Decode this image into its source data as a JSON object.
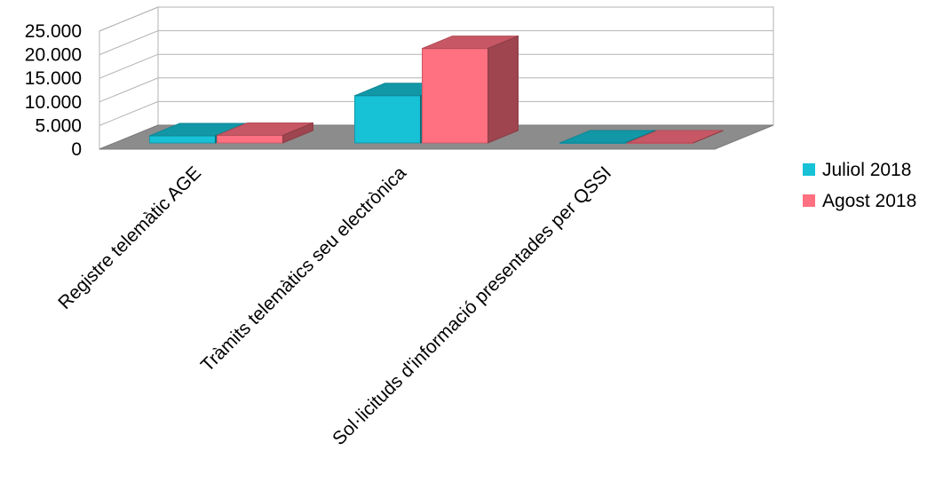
{
  "chart_data": {
    "type": "bar",
    "categories": [
      "Registre telemàtic AGE",
      "Tràmits telemàtics seu electrònica",
      "Sol·licituds d'informació presentades per QSSI"
    ],
    "series": [
      {
        "name": "Juliol 2018",
        "color": "#17C1D6",
        "values": [
          1500,
          10000,
          0
        ]
      },
      {
        "name": "Agost 2018",
        "color": "#FF7080",
        "values": [
          1600,
          20000,
          0
        ]
      }
    ],
    "y_ticks": [
      "25.000",
      "20.000",
      "15.000",
      "10.000",
      "5.000",
      "0"
    ],
    "ylim": [
      0,
      25000
    ],
    "title": "",
    "xlabel": "",
    "ylabel": "",
    "grid": true,
    "legend": "right",
    "three_d": true
  }
}
